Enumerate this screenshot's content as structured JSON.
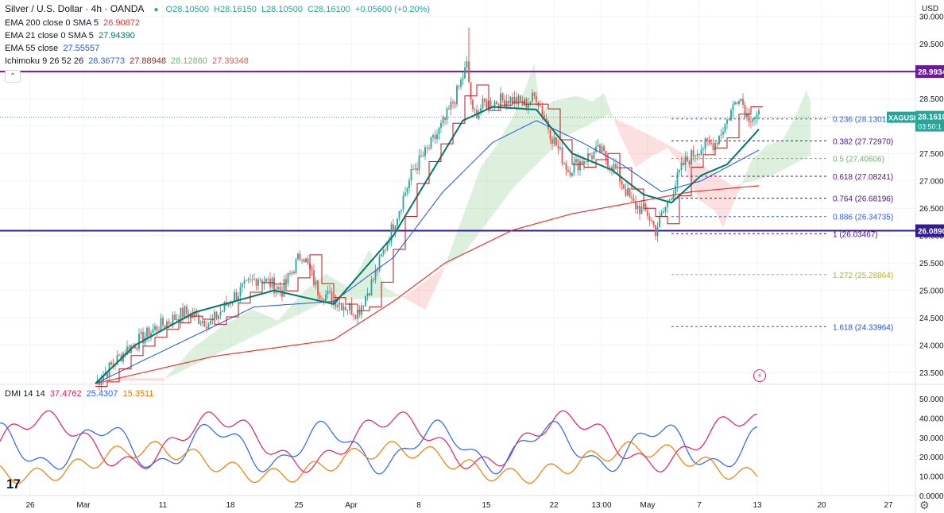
{
  "header": {
    "title": "Silver / U.S. Dollar · 4h · OANDA",
    "open": "O28.10500",
    "high": "H28.16150",
    "low": "L28.10500",
    "close": "C28.16100",
    "change": "+0.05600 (+0.20%)",
    "currency": "USD",
    "status_color": "#26a69a"
  },
  "indicators": [
    {
      "label": "EMA 200 close 0 SMA 5",
      "value": "26.90872",
      "color": "#e53935"
    },
    {
      "label": "EMA 21 close 0 SMA 5",
      "value": "27.94390",
      "color": "#00796b"
    },
    {
      "label": "EMA 55 close",
      "value": "27.55557",
      "color": "#1e53e5"
    },
    {
      "label": "Ichimoku 9 26 52 26",
      "values": [
        "28.36773",
        "27.88948",
        "28.12860",
        "27.39348"
      ],
      "colors": [
        "#2962ff",
        "#b71c1c",
        "#66bb6a",
        "#ef5350"
      ]
    }
  ],
  "collapse_icon": "chevron-up-icon",
  "price_axis": {
    "ticks": [
      "30.0000",
      "29.5000",
      "29.0000",
      "28.5000",
      "28.0000",
      "27.5000",
      "27.0000",
      "26.5000",
      "26.0000",
      "25.5000",
      "25.0000",
      "24.5000",
      "24.0000",
      "23.5000"
    ],
    "range": [
      23.3,
      30.3
    ]
  },
  "levels": [
    {
      "value": 28.9934,
      "label": "28.9934",
      "color": "#6a1b9a"
    },
    {
      "value": 26.089,
      "label": "26.0890",
      "color": "#311b92"
    }
  ],
  "current_price": {
    "symbol": "XAGUSD",
    "price": "28.1610",
    "countdown": "03:50:1",
    "value": 28.161,
    "color": "#26a69a"
  },
  "fibonacci": [
    {
      "ratio": "0.236",
      "price": "(28.13015)",
      "value": 28.13015,
      "color": "#2962ff"
    },
    {
      "ratio": "0.382",
      "price": "(27.72970)",
      "value": 27.7297,
      "color": "#4a148c"
    },
    {
      "ratio": "0.5",
      "price": "(27.40606)",
      "value": 27.40606,
      "color": "#66bb6a"
    },
    {
      "ratio": "0.618",
      "price": "(27.08241)",
      "value": 27.08241,
      "color": "#4a148c"
    },
    {
      "ratio": "0.764",
      "price": "(26.68196)",
      "value": 26.68196,
      "color": "#4a148c"
    },
    {
      "ratio": "0.886",
      "price": "(26.34735)",
      "value": 26.34735,
      "color": "#2962ff"
    },
    {
      "ratio": "1",
      "price": "(26.03467)",
      "value": 26.03467,
      "color": "#4a148c"
    },
    {
      "ratio": "1.272",
      "price": "(25.28864)",
      "value": 25.28864,
      "color": "#b2b61b"
    },
    {
      "ratio": "1.618",
      "price": "(24.33964)",
      "value": 24.33964,
      "color": "#1e53e5"
    }
  ],
  "dmi": {
    "label": "DMI 14 14",
    "values": [
      "37.4762",
      "25.4307",
      "15.3511"
    ],
    "colors": [
      "#e91e63",
      "#2962ff",
      "#f57c00"
    ],
    "ticks": [
      "50.0000",
      "40.0000",
      "30.0000",
      "20.0000",
      "10.0000",
      "0.0000"
    ],
    "range": [
      0,
      57
    ]
  },
  "time_axis": [
    "26",
    "Mar",
    "11",
    "18",
    "25",
    "Apr",
    "8",
    "15",
    "22",
    "13:00",
    "May",
    "7",
    "13",
    "20",
    "27"
  ],
  "brand": "17",
  "colors": {
    "up": "#26a69a",
    "down": "#ef5350",
    "grid": "#f0f3fa"
  },
  "chart_data": {
    "type": "line",
    "x_labels": [
      "26",
      "Mar",
      "11",
      "18",
      "25",
      "Apr",
      "8",
      "15",
      "22",
      "13:00",
      "May",
      "7",
      "13",
      "20",
      "27"
    ],
    "series": [
      {
        "name": "Silver / U.S. Dollar · 4h · OANDA",
        "points": [
          [
            0,
            23.3
          ],
          [
            15,
            23.9
          ],
          [
            30,
            24.3
          ],
          [
            45,
            24.6
          ],
          [
            58,
            24.4
          ],
          [
            70,
            24.9
          ],
          [
            82,
            25.25
          ],
          [
            94,
            25.0
          ],
          [
            104,
            25.7
          ],
          [
            112,
            25.0
          ],
          [
            122,
            24.8
          ],
          [
            132,
            24.6
          ],
          [
            140,
            25.2
          ],
          [
            150,
            26.2
          ],
          [
            160,
            27.2
          ],
          [
            168,
            27.6
          ],
          [
            176,
            28.1
          ],
          [
            182,
            28.6
          ],
          [
            187,
            29.1
          ],
          [
            190,
            28.2
          ],
          [
            196,
            28.4
          ],
          [
            208,
            28.5
          ],
          [
            216,
            28.4
          ],
          [
            222,
            28.55
          ],
          [
            230,
            27.8
          ],
          [
            238,
            27.2
          ],
          [
            246,
            27.4
          ],
          [
            254,
            27.55
          ],
          [
            262,
            27.2
          ],
          [
            270,
            26.6
          ],
          [
            278,
            26.4
          ],
          [
            282,
            26.1
          ],
          [
            288,
            26.6
          ],
          [
            296,
            27.3
          ],
          [
            304,
            27.6
          ],
          [
            312,
            27.7
          ],
          [
            318,
            28.1
          ],
          [
            324,
            28.6
          ],
          [
            328,
            28.2
          ],
          [
            334,
            28.16
          ]
        ]
      },
      {
        "name": "EMA 200",
        "points": [
          [
            0,
            23.3
          ],
          [
            60,
            23.8
          ],
          [
            120,
            24.1
          ],
          [
            150,
            24.8
          ],
          [
            176,
            25.5
          ],
          [
            210,
            26.1
          ],
          [
            240,
            26.4
          ],
          [
            270,
            26.6
          ],
          [
            300,
            26.8
          ],
          [
            334,
            26.91
          ]
        ]
      },
      {
        "name": "EMA 21",
        "points": [
          [
            0,
            23.3
          ],
          [
            20,
            24.0
          ],
          [
            50,
            24.6
          ],
          [
            90,
            25.0
          ],
          [
            120,
            24.75
          ],
          [
            150,
            26.0
          ],
          [
            170,
            27.2
          ],
          [
            185,
            28.1
          ],
          [
            200,
            28.35
          ],
          [
            222,
            28.3
          ],
          [
            240,
            27.5
          ],
          [
            260,
            27.2
          ],
          [
            276,
            26.75
          ],
          [
            290,
            26.6
          ],
          [
            305,
            27.1
          ],
          [
            318,
            27.3
          ],
          [
            334,
            27.94
          ]
        ]
      },
      {
        "name": "EMA 55",
        "points": [
          [
            0,
            23.3
          ],
          [
            40,
            24.0
          ],
          [
            80,
            24.7
          ],
          [
            120,
            24.8
          ],
          [
            150,
            25.6
          ],
          [
            175,
            26.8
          ],
          [
            200,
            27.7
          ],
          [
            222,
            28.1
          ],
          [
            245,
            27.7
          ],
          [
            265,
            27.3
          ],
          [
            285,
            26.8
          ],
          [
            305,
            27.0
          ],
          [
            334,
            27.56
          ]
        ]
      }
    ]
  }
}
